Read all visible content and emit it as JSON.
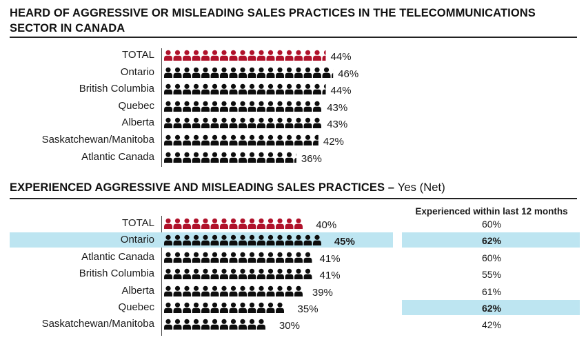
{
  "chart_data": [
    {
      "type": "bar",
      "title": "HEARD OF AGGRESSIVE OR MISLEADING SALES PRACTICES IN THE TELECOMMUNICATIONS SECTOR IN CANADA",
      "categories": [
        "TOTAL",
        "Ontario",
        "British Columbia",
        "Quebec",
        "Alberta",
        "Saskatchewan/Manitoba",
        "Atlantic Canada"
      ],
      "values": [
        44,
        46,
        44,
        43,
        43,
        42,
        36
      ],
      "value_labels": [
        "44%",
        "46%",
        "44%",
        "43%",
        "43%",
        "42%",
        "36%"
      ],
      "unit": "%",
      "highlight_colors": {
        "total": "#b0122b",
        "region": "#0d0d0d"
      }
    },
    {
      "type": "bar",
      "title": "EXPERIENCED AGGRESSIVE AND MISLEADING SALES PRACTICES",
      "title_dash": "–",
      "title_suffix": "Yes (Net)",
      "categories": [
        "TOTAL",
        "Ontario",
        "Atlantic Canada",
        "British Columbia",
        "Alberta",
        "Quebec",
        "Saskatchewan/Manitoba"
      ],
      "values": [
        40,
        45,
        41,
        41,
        39,
        35,
        30
      ],
      "value_labels": [
        "40%",
        "45%",
        "41%",
        "41%",
        "39%",
        "35%",
        "30%"
      ],
      "unit": "%",
      "table": {
        "header": "Experienced within last 12 months",
        "values": [
          "60%",
          "62%",
          "60%",
          "55%",
          "61%",
          "62%",
          "42%"
        ]
      },
      "highlighted_rows": [
        "Ontario"
      ],
      "highlighted_table_cells": [
        "Ontario",
        "Quebec"
      ],
      "highlight_color": "#bde5f1"
    }
  ]
}
